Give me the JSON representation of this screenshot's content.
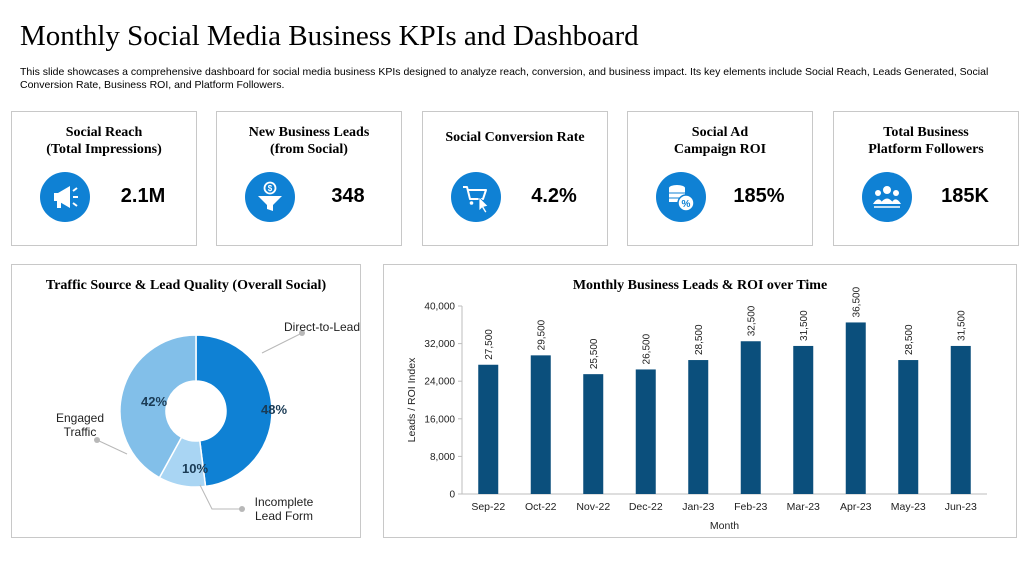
{
  "header": {
    "title": "Monthly Social Media Business KPIs and Dashboard",
    "subtitle": "This slide showcases a comprehensive dashboard for social media business KPIs designed to analyze reach, conversion, and business impact. Its key elements include Social Reach, Leads Generated, Social Conversion Rate, Business ROI, and Platform Followers."
  },
  "kpis": [
    {
      "label_line1": "Social Reach",
      "label_line2": "(Total Impressions)",
      "value": "2.1M",
      "icon": "megaphone-icon"
    },
    {
      "label_line1": "New Business Leads",
      "label_line2": "(from Social)",
      "value": "348",
      "icon": "funnel-dollar-icon"
    },
    {
      "label_line1": "Social Conversion Rate",
      "label_line2": "",
      "value": "4.2%",
      "icon": "cart-click-icon"
    },
    {
      "label_line1": "Social Ad",
      "label_line2": "Campaign ROI",
      "value": "185%",
      "icon": "coins-percent-icon"
    },
    {
      "label_line1": "Total Business",
      "label_line2": "Platform Followers",
      "value": "185K",
      "icon": "people-group-icon"
    }
  ],
  "colors": {
    "icon_circle": "#0f81d4",
    "bar": "#0b4f7c",
    "donut_dark": "#0f81d4",
    "donut_light": "#82bfe9",
    "donut_lighter": "#a9d5f3"
  },
  "chart_data": [
    {
      "type": "pie",
      "title": "Traffic Source & Lead Quality (Overall Social)",
      "donut": true,
      "slices": [
        {
          "label": "Direct-to-Lead",
          "value": 48,
          "display": "48%",
          "color": "#0f81d4"
        },
        {
          "label": "Incomplete Lead Form",
          "value": 10,
          "display": "10%",
          "color": "#a9d5f3"
        },
        {
          "label": "Engaged Traffic",
          "value": 42,
          "display": "42%",
          "color": "#82bfe9"
        }
      ]
    },
    {
      "type": "bar",
      "title": "Monthly Business Leads & ROI over Time",
      "xlabel": "Month",
      "ylabel": "Leads / ROI Index",
      "ylim": [
        0,
        40000
      ],
      "yticks": [
        0,
        8000,
        16000,
        24000,
        32000,
        40000
      ],
      "ytick_labels": [
        "0",
        "8,000",
        "16,000",
        "24,000",
        "32,000",
        "40,000"
      ],
      "categories": [
        "Sep-22",
        "Oct-22",
        "Nov-22",
        "Dec-22",
        "Jan-23",
        "Feb-23",
        "Mar-23",
        "Apr-23",
        "May-23",
        "Jun-23"
      ],
      "values": [
        27500,
        29500,
        25500,
        26500,
        28500,
        32500,
        31500,
        36500,
        28500,
        31500
      ],
      "data_labels": [
        "27,500",
        "29,500",
        "25,500",
        "26,500",
        "28,500",
        "32,500",
        "31,500",
        "36,500",
        "28,500",
        "31,500"
      ],
      "grid": false,
      "legend": false
    }
  ]
}
